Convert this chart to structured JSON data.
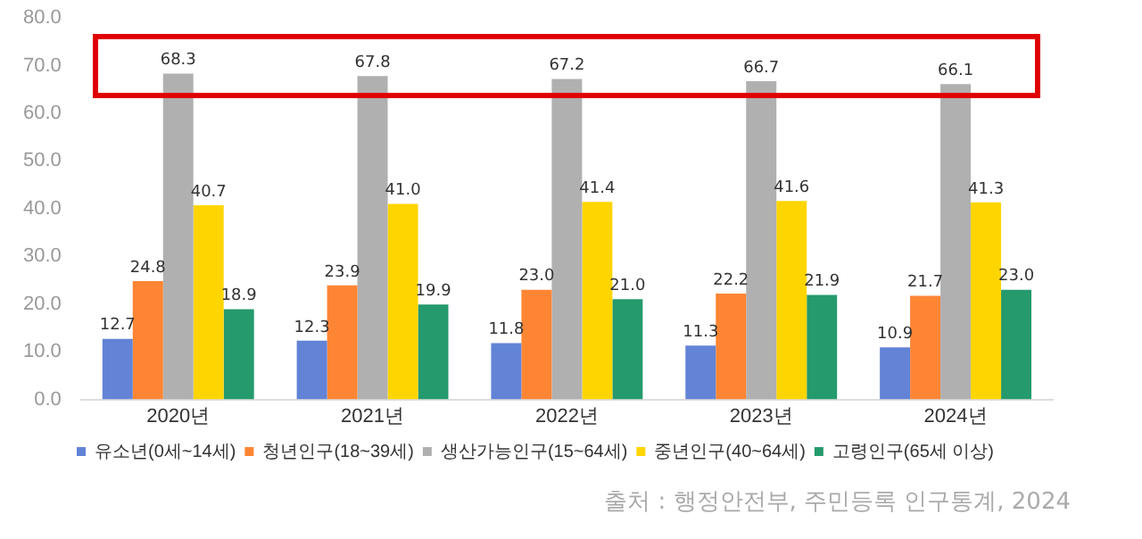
{
  "chart_data": {
    "type": "bar",
    "categories": [
      "2020년",
      "2021년",
      "2022년",
      "2023년",
      "2024년"
    ],
    "series": [
      {
        "name": "유소년(0세~14세)",
        "color": "#6283d6",
        "values": [
          12.7,
          12.3,
          11.8,
          11.3,
          10.9
        ],
        "value_labels": [
          "12.7",
          "12.3",
          "11.8",
          "11.3",
          "10.9"
        ]
      },
      {
        "name": "청년인구(18~39세)",
        "color": "#fe8534",
        "values": [
          24.8,
          23.9,
          23.0,
          22.2,
          21.7
        ],
        "value_labels": [
          "24.8",
          "23.9",
          "23.0",
          "22.2",
          "21.7"
        ]
      },
      {
        "name": "생산가능인구(15~64세)",
        "color": "#b0b0b0",
        "values": [
          68.3,
          67.8,
          67.2,
          66.7,
          66.1
        ],
        "value_labels": [
          "68.3",
          "67.8",
          "67.2",
          "66.7",
          "66.1"
        ]
      },
      {
        "name": "중년인구(40~64세)",
        "color": "#ffd500",
        "values": [
          40.7,
          41.0,
          41.4,
          41.6,
          41.3
        ],
        "value_labels": [
          "40.7",
          "41.0",
          "41.4",
          "41.6",
          "41.3"
        ]
      },
      {
        "name": "고령인구(65세 이상)",
        "color": "#259a6c",
        "values": [
          18.9,
          19.9,
          21.0,
          21.9,
          23.0
        ],
        "value_labels": [
          "18.9",
          "19.9",
          "21.0",
          "21.9",
          "23.0"
        ]
      }
    ],
    "ylim": [
      0,
      80
    ],
    "yticks": [
      {
        "value": 0,
        "label": "0.0"
      },
      {
        "value": 10,
        "label": "10.0"
      },
      {
        "value": 20,
        "label": "20.0"
      },
      {
        "value": 30,
        "label": "30.0"
      },
      {
        "value": 40,
        "label": "40.0"
      },
      {
        "value": 50,
        "label": "50.0"
      },
      {
        "value": 60,
        "label": "60.0"
      },
      {
        "value": 70,
        "label": "70.0"
      },
      {
        "value": 80,
        "label": "80.0"
      }
    ],
    "grid": false,
    "legend": "bottom",
    "annotations": [
      "출처 : 행정안전부, 주민등록 인구통계, 2024"
    ]
  }
}
